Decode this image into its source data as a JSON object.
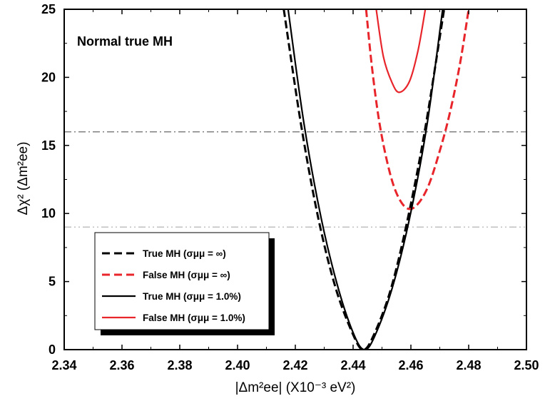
{
  "chart_data": {
    "type": "line",
    "annotation": "Normal true MH",
    "xlabel": "|Δm²ee| (X10⁻³ eV²)",
    "ylabel": "Δχ² (Δm²ee)",
    "xlim": [
      2.34,
      2.5
    ],
    "ylim": [
      0,
      25
    ],
    "x_ticks": [
      "2.34",
      "2.36",
      "2.38",
      "2.40",
      "2.42",
      "2.44",
      "2.46",
      "2.48",
      "2.50"
    ],
    "y_ticks": [
      "0",
      "5",
      "10",
      "15",
      "20",
      "25"
    ],
    "reference_lines": [
      {
        "y": 16,
        "style": "dash-dot",
        "color": "#808080"
      },
      {
        "y": 9,
        "style": "dash-dot-dot",
        "color": "#c0c0c0"
      }
    ],
    "legend_position": "bottom-left",
    "series": [
      {
        "name": "True MH (σμμ = ∞)",
        "color": "#000000",
        "dash": true,
        "x": [
          2.416,
          2.422,
          2.428,
          2.434,
          2.44,
          2.4435,
          2.447,
          2.453,
          2.459,
          2.465,
          2.4715
        ],
        "y": [
          25.0,
          16.5,
          9.6,
          4.5,
          1.1,
          0.0,
          1.0,
          4.4,
          9.7,
          16.3,
          25.0
        ]
      },
      {
        "name": "False MH (σμμ = ∞)",
        "color": "#e8252b",
        "dash": true,
        "x": [
          2.4445,
          2.4465,
          2.449,
          2.452,
          2.455,
          2.4585,
          2.462,
          2.466,
          2.47,
          2.4735,
          2.477,
          2.48
        ],
        "y": [
          25.0,
          20.8,
          16.8,
          13.6,
          11.5,
          10.4,
          10.6,
          12.0,
          14.6,
          17.4,
          21.0,
          25.0
        ]
      },
      {
        "name": "True MH (σμμ = 1.0%)",
        "color": "#000000",
        "dash": false,
        "x": [
          2.4175,
          2.423,
          2.429,
          2.435,
          2.4405,
          2.444,
          2.4475,
          2.4535,
          2.4595,
          2.4655,
          2.471
        ],
        "y": [
          25.0,
          16.6,
          9.6,
          4.4,
          1.0,
          0.0,
          1.0,
          4.5,
          9.6,
          16.4,
          25.0
        ]
      },
      {
        "name": "False MH (σμμ = 1.0%)",
        "color": "#e8252b",
        "dash": false,
        "x": [
          2.448,
          2.4505,
          2.4535,
          2.456,
          2.4595,
          2.4625,
          2.465
        ],
        "y": [
          25.0,
          21.5,
          19.6,
          18.9,
          19.7,
          22.0,
          25.0
        ]
      }
    ]
  }
}
